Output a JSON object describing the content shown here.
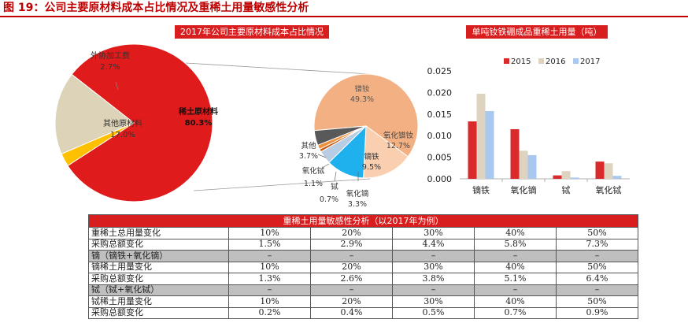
{
  "figure_title": "图 19：公司主要原材料成本占比情况及重稀土用量敏感性分析",
  "chart_data": [
    {
      "type": "pie",
      "title": "2017年公司主要原材料成本占比情况",
      "slices": [
        {
          "label": "稀土原材料",
          "value": 80.3,
          "display": "80.3%",
          "color": "#e01b1b"
        },
        {
          "label": "外协加工费",
          "value": 2.7,
          "display": "2.7%",
          "color": "#ffc000"
        },
        {
          "label": "其他原材料",
          "value": 17.0,
          "display": "17.0%",
          "color": "#ddd3b9"
        }
      ]
    },
    {
      "type": "pie",
      "title": "",
      "slices": [
        {
          "label": "镨钕",
          "value": 49.3,
          "display": "49.3%",
          "color": "#f3b183"
        },
        {
          "label": "氧化镨钕",
          "value": 12.7,
          "display": "12.7%",
          "color": "#f9cfb0"
        },
        {
          "label": "镝铁",
          "value": 9.5,
          "display": "9.5%",
          "color": "#1fb0ee"
        },
        {
          "label": "氧化镝",
          "value": 3.3,
          "display": "3.3%",
          "color": "#b8cde4"
        },
        {
          "label": "铽",
          "value": 0.7,
          "display": "0.7%",
          "color": "#c55a11"
        },
        {
          "label": "氧化铽",
          "value": 1.1,
          "display": "1.1%",
          "color": "#f0903c"
        },
        {
          "label": "其他",
          "value": 3.7,
          "display": "3.7%",
          "color": "#595959"
        }
      ]
    },
    {
      "type": "bar",
      "title": "单吨钕铁硼成品重稀土用量（吨）",
      "categories": [
        "镝铁",
        "氧化镝",
        "铽",
        "氧化铽"
      ],
      "series": [
        {
          "name": "2015",
          "color": "#d92b2b",
          "values": [
            0.0133,
            0.0115,
            0.0008,
            0.004
          ]
        },
        {
          "name": "2016",
          "color": "#ddd3bf",
          "values": [
            0.0197,
            0.0065,
            0.0018,
            0.0036
          ]
        },
        {
          "name": "2017",
          "color": "#a9c8ef",
          "values": [
            0.0157,
            0.0055,
            0.0003,
            0.0007
          ]
        }
      ],
      "ylim": [
        0,
        0.025
      ],
      "yticks": [
        "0.000",
        "0.005",
        "0.010",
        "0.015",
        "0.020",
        "0.025"
      ],
      "legend_position": "top"
    }
  ],
  "table": {
    "title": "重稀土用量敏感性分析（以2017年为例）",
    "rows": [
      {
        "type": "data",
        "label": "重稀土总用量变化",
        "values": [
          "10%",
          "20%",
          "30%",
          "40%",
          "50%"
        ]
      },
      {
        "type": "data",
        "label": "采购总额变化",
        "values": [
          "1.5%",
          "2.9%",
          "4.4%",
          "5.8%",
          "7.3%"
        ]
      },
      {
        "type": "section",
        "label": "镝（镝铁+氧化镝）",
        "values": [
          "–",
          "–",
          "–",
          "–",
          "–"
        ]
      },
      {
        "type": "data",
        "label": "镝稀土用量变化",
        "values": [
          "10%",
          "20%",
          "30%",
          "40%",
          "50%"
        ]
      },
      {
        "type": "data",
        "label": "采购总额变化",
        "values": [
          "1.3%",
          "2.6%",
          "3.8%",
          "5.1%",
          "6.4%"
        ]
      },
      {
        "type": "section",
        "label": "铽（铽+氧化铽）",
        "values": [
          "–",
          "–",
          "–",
          "–",
          "–"
        ]
      },
      {
        "type": "data",
        "label": "铽稀土用量变化",
        "values": [
          "10%",
          "20%",
          "30%",
          "40%",
          "50%"
        ]
      },
      {
        "type": "data",
        "label": "采购总额变化",
        "values": [
          "0.2%",
          "0.4%",
          "0.5%",
          "0.7%",
          "0.9%"
        ]
      }
    ]
  }
}
